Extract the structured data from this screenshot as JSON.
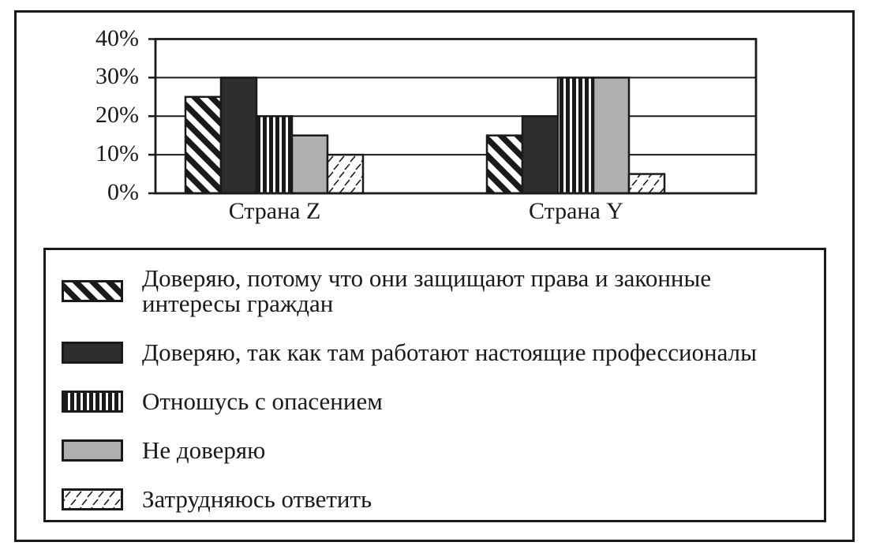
{
  "page": {
    "background": "#ffffff",
    "frame_border_color": "#1a1a1a"
  },
  "chart_data": {
    "type": "bar",
    "title": "",
    "xlabel": "",
    "ylabel": "",
    "categories": [
      "Страна Z",
      "Страна Y"
    ],
    "series": [
      {
        "name": "Доверяю, потому что они защищают права и законные интересы граждан",
        "pattern": "diagonal-stripes",
        "values": [
          25,
          15
        ]
      },
      {
        "name": "Доверяю, так как там работают настоящие профессионалы",
        "pattern": "solid-dark",
        "values": [
          30,
          20
        ]
      },
      {
        "name": "Отношусь с опасением",
        "pattern": "vertical-stripes",
        "values": [
          20,
          30
        ]
      },
      {
        "name": "Не доверяю",
        "pattern": "solid-gray",
        "values": [
          15,
          30
        ]
      },
      {
        "name": "Затрудняюсь ответить",
        "pattern": "diagonal-dashes",
        "values": [
          10,
          5
        ]
      }
    ],
    "yticks": [
      0,
      10,
      20,
      30,
      40
    ],
    "ytick_suffix": "%",
    "ylim": [
      0,
      40
    ],
    "grid": "horizontal",
    "legend_position": "bottom",
    "colors": {
      "bar_border": "#1a1a1a",
      "solid_dark": "#2e2e2e",
      "solid_gray": "#b0b0b0",
      "pattern_ink": "#1a1a1a",
      "pattern_background": "#ffffff"
    }
  },
  "legend": {
    "items": [
      {
        "label": "Доверяю, потому что они защищают права и законные\nинтересы граждан",
        "pattern": "diagonal-stripes"
      },
      {
        "label": "Доверяю, так как там работают настоящие профессионалы",
        "pattern": "solid-dark"
      },
      {
        "label": "Отношусь с опасением",
        "pattern": "vertical-stripes"
      },
      {
        "label": "Не доверяю",
        "pattern": "solid-gray"
      },
      {
        "label": "Затрудняюсь ответить",
        "pattern": "diagonal-dashes"
      }
    ]
  }
}
